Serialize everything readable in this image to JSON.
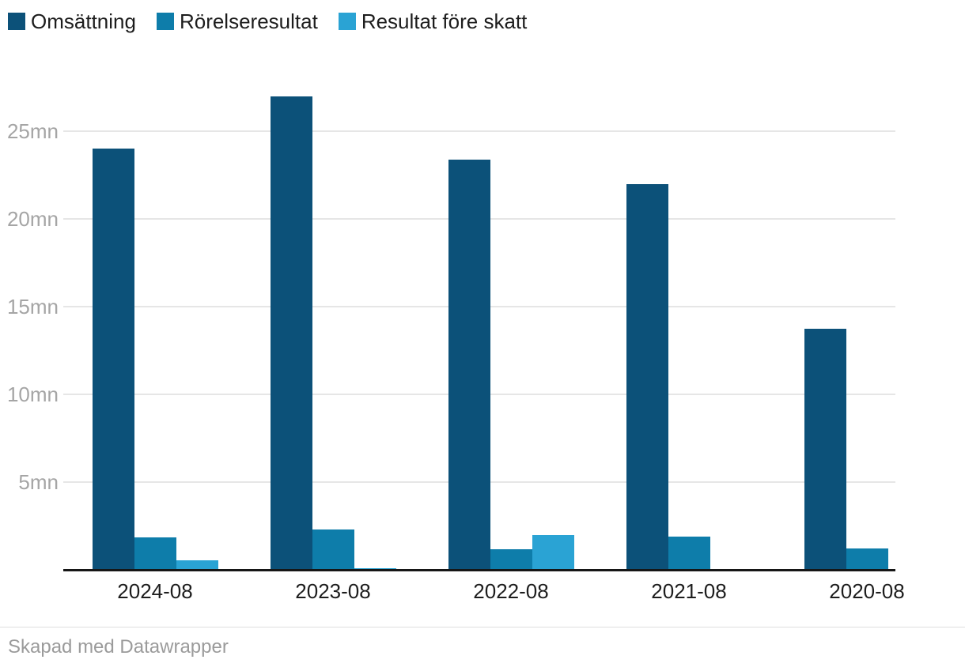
{
  "colors": {
    "background": "#ffffff",
    "axis_line": "#161616",
    "gridline": "#e6e6e6",
    "ytick_label": "#a5a5a5",
    "xtick_label": "#1d1d1d",
    "legend_text": "#1d1d1d",
    "footer_text": "#9b9b9b",
    "footer_divider": "#dedede",
    "series_dark_blue": "#0c5179",
    "series_medium_blue": "#0e7daa",
    "series_light_blue": "#2aa3d4"
  },
  "legend": {
    "items": [
      {
        "label": "Omsättning",
        "color": "#0c5179"
      },
      {
        "label": "Rörelseresultat",
        "color": "#0e7daa"
      },
      {
        "label": "Resultat före skatt",
        "color": "#2aa3d4"
      }
    ]
  },
  "chart_data": {
    "type": "bar",
    "title": "",
    "xlabel": "",
    "ylabel": "",
    "unit": "mn",
    "categories": [
      "2024-08",
      "2023-08",
      "2022-08",
      "2021-08",
      "2020-08"
    ],
    "series": [
      {
        "name": "Omsättning",
        "color": "#0c5179",
        "values": [
          24.0,
          27.0,
          23.4,
          22.0,
          13.75
        ]
      },
      {
        "name": "Rörelseresultat",
        "color": "#0e7daa",
        "values": [
          1.85,
          2.3,
          1.15,
          1.9,
          1.2
        ]
      },
      {
        "name": "Resultat före skatt",
        "color": "#2aa3d4",
        "values": [
          0.55,
          0.1,
          2.0,
          0,
          0
        ]
      }
    ],
    "ylim": [
      0,
      27.5
    ],
    "yticks": [
      5,
      10,
      15,
      20,
      25
    ],
    "ytick_labels": [
      "5mn",
      "10mn",
      "15mn",
      "20mn",
      "25mn"
    ],
    "grid": true,
    "legend_position": "top-left"
  },
  "footer": {
    "attribution": "Skapad med Datawrapper"
  }
}
